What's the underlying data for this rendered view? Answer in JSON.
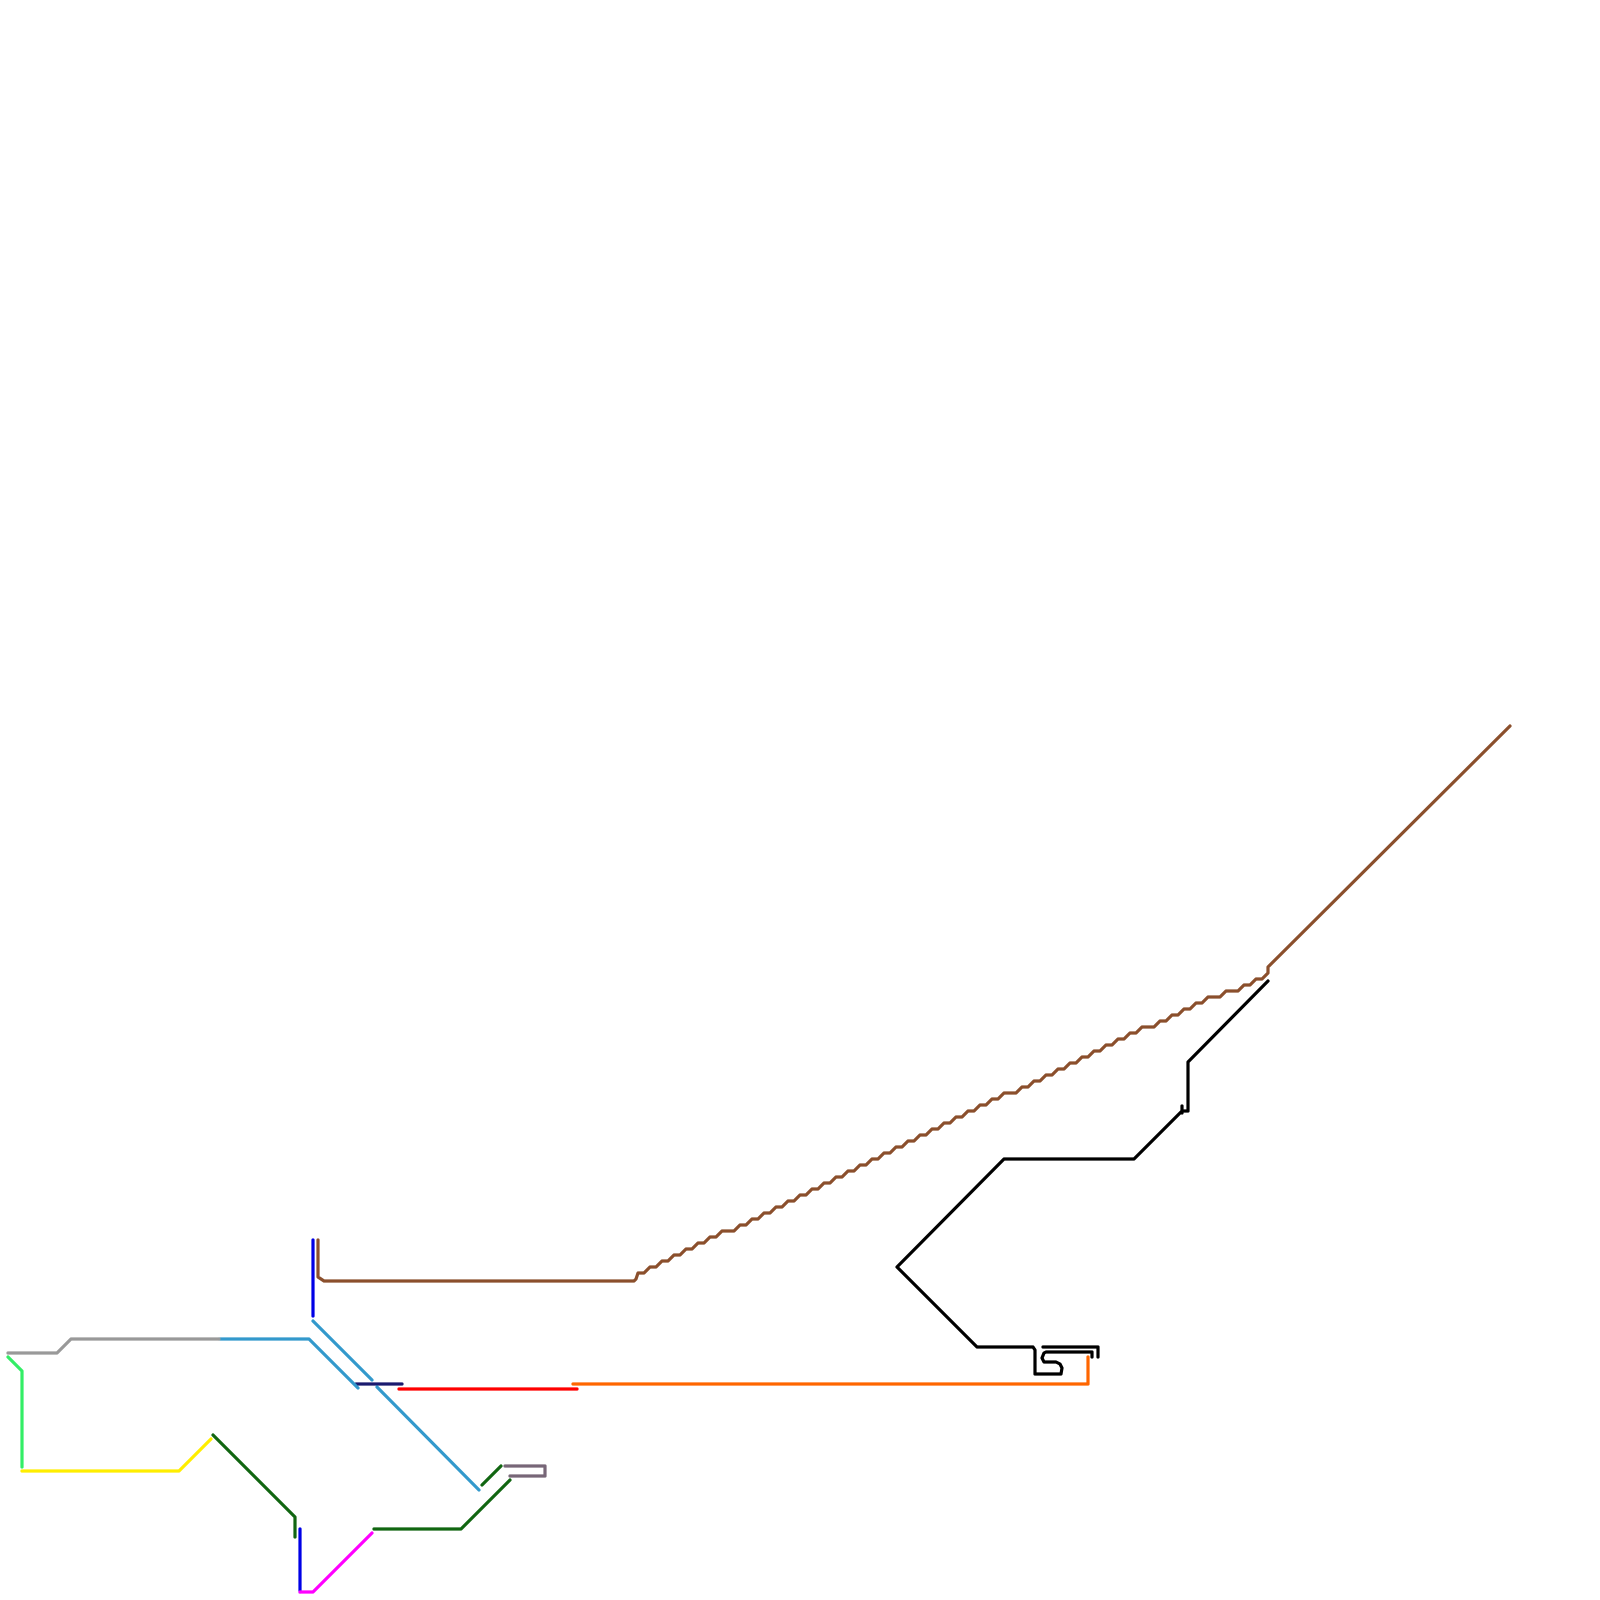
{
  "diagram": {
    "type": "route-line-map",
    "background": "#ffffff",
    "colors": {
      "brown": "#8b4f2c",
      "black": "#000000",
      "orange": "#ff6600",
      "red": "#ff0000",
      "navy": "#1a1a6e",
      "sky_blue": "#3399cc",
      "blue": "#0000e6",
      "gray": "#999999",
      "spring_green": "#33ee66",
      "yellow": "#ffee00",
      "dark_green": "#116611",
      "magenta": "#ff00ff",
      "slate_purple": "#776677"
    },
    "route_count": 13
  }
}
